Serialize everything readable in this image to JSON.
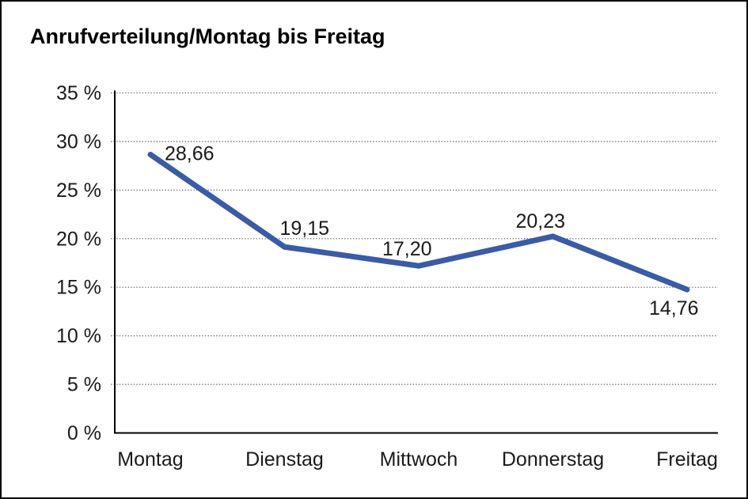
{
  "chart": {
    "title": "Anrufverteilung/Montag bis Freitag"
  },
  "chart_data": {
    "type": "line",
    "title": "Anrufverteilung/Montag bis Freitag",
    "categories": [
      "Montag",
      "Dienstag",
      "Mittwoch",
      "Donnerstag",
      "Freitag"
    ],
    "values": [
      28.66,
      19.15,
      17.2,
      20.23,
      14.76
    ],
    "value_labels": [
      "28,66",
      "19,15",
      "17,20",
      "20,23",
      "14,76"
    ],
    "xlabel": "",
    "ylabel": "",
    "ylim": [
      0,
      35
    ],
    "ytick_step": 5,
    "ytick_labels": [
      "0 %",
      "5 %",
      "10 %",
      "15 %",
      "20 %",
      "25 %",
      "30 %",
      "35 %"
    ],
    "grid": "horizontal-dotted",
    "legend": "none",
    "line_color": "#3A5BA6",
    "axis_color": "#000000",
    "gridline_color": "#6e6e6e",
    "label_color": "#1a1a1a"
  }
}
